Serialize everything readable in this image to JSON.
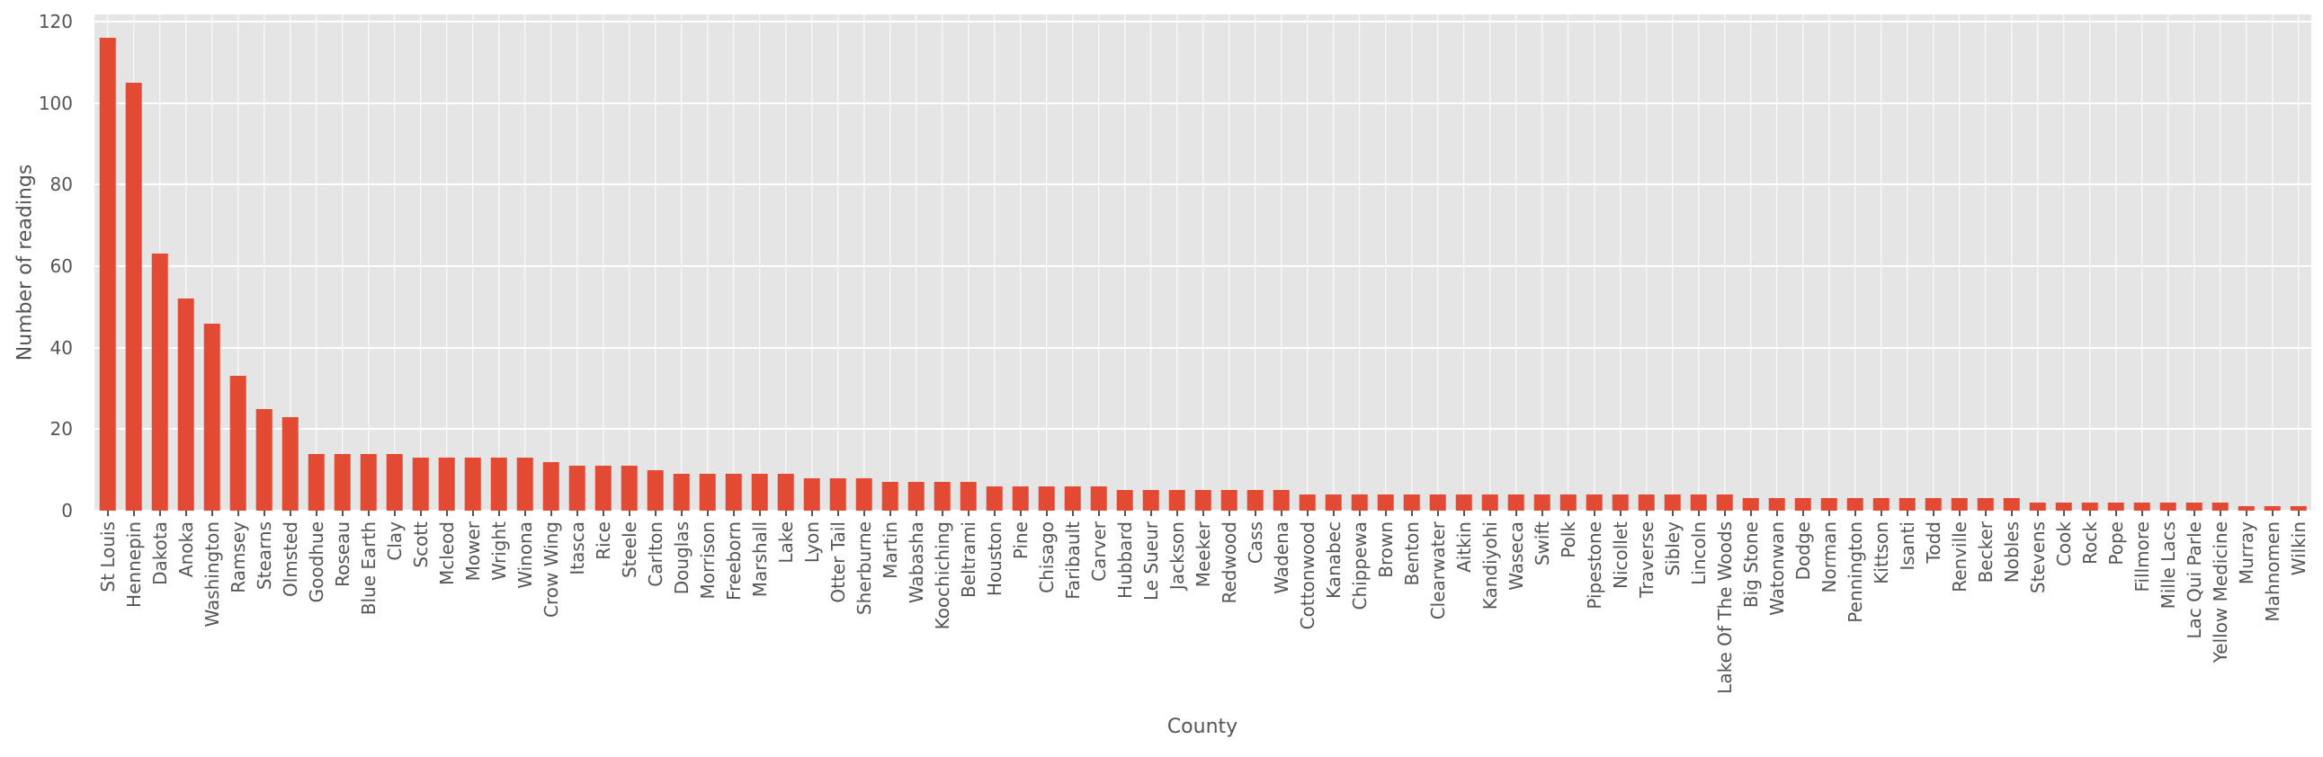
{
  "chart_data": {
    "type": "bar",
    "title": "",
    "xlabel": "County",
    "ylabel": "Number of readings",
    "ylim": [
      0,
      120
    ],
    "yticks": [
      0,
      20,
      40,
      60,
      80,
      100,
      120
    ],
    "grid": true,
    "legend": false,
    "bar_color": "#E24A33",
    "plot_background": "#E5E5E5",
    "gridline_color": "#FFFFFF",
    "text_color": "#555555",
    "categories": [
      "St Louis",
      "Hennepin",
      "Dakota",
      "Anoka",
      "Washington",
      "Ramsey",
      "Stearns",
      "Olmsted",
      "Goodhue",
      "Roseau",
      "Blue Earth",
      "Clay",
      "Scott",
      "Mcleod",
      "Mower",
      "Wright",
      "Winona",
      "Crow Wing",
      "Itasca",
      "Rice",
      "Steele",
      "Carlton",
      "Douglas",
      "Morrison",
      "Freeborn",
      "Marshall",
      "Lake",
      "Lyon",
      "Otter Tail",
      "Sherburne",
      "Martin",
      "Wabasha",
      "Koochiching",
      "Beltrami",
      "Houston",
      "Pine",
      "Chisago",
      "Faribault",
      "Carver",
      "Hubbard",
      "Le Sueur",
      "Jackson",
      "Meeker",
      "Redwood",
      "Cass",
      "Wadena",
      "Cottonwood",
      "Kanabec",
      "Chippewa",
      "Brown",
      "Benton",
      "Clearwater",
      "Aitkin",
      "Kandiyohi",
      "Waseca",
      "Swift",
      "Polk",
      "Pipestone",
      "Nicollet",
      "Traverse",
      "Sibley",
      "Lincoln",
      "Lake Of The Woods",
      "Big Stone",
      "Watonwan",
      "Dodge",
      "Norman",
      "Pennington",
      "Kittson",
      "Isanti",
      "Todd",
      "Renville",
      "Becker",
      "Nobles",
      "Stevens",
      "Cook",
      "Rock",
      "Pope",
      "Fillmore",
      "Mille Lacs",
      "Lac Qui Parle",
      "Yellow Medicine",
      "Murray",
      "Mahnomen",
      "Wilkin"
    ],
    "values": [
      116,
      105,
      63,
      52,
      46,
      33,
      25,
      23,
      14,
      14,
      14,
      14,
      13,
      13,
      13,
      13,
      13,
      12,
      11,
      11,
      11,
      10,
      9,
      9,
      9,
      9,
      9,
      8,
      8,
      8,
      7,
      7,
      7,
      7,
      6,
      6,
      6,
      6,
      6,
      5,
      5,
      5,
      5,
      5,
      5,
      5,
      4,
      4,
      4,
      4,
      4,
      4,
      4,
      4,
      4,
      4,
      4,
      4,
      4,
      4,
      4,
      4,
      4,
      3,
      3,
      3,
      3,
      3,
      3,
      3,
      3,
      3,
      3,
      3,
      2,
      2,
      2,
      2,
      2,
      2,
      2,
      2,
      1,
      1,
      1
    ]
  }
}
